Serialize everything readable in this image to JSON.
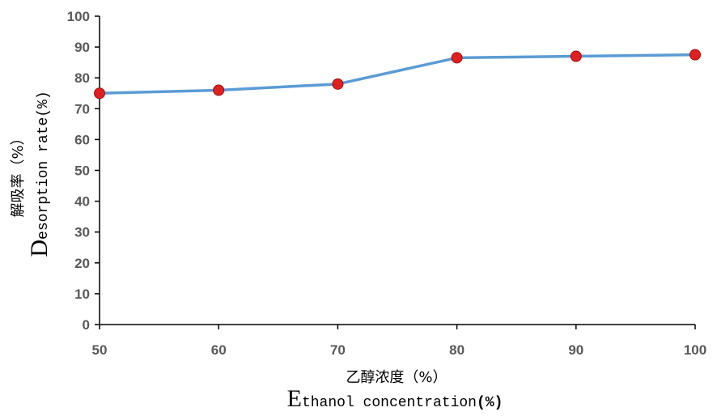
{
  "chart_data": {
    "type": "line",
    "x": [
      50,
      60,
      70,
      80,
      90,
      100
    ],
    "series": [
      {
        "values": [
          75,
          76,
          78,
          86.5,
          87,
          87.5
        ],
        "line_color": "#5b9bd5",
        "marker_color": "#e02020"
      }
    ],
    "xlim": [
      50,
      100
    ],
    "ylim": [
      0,
      100
    ],
    "xticks": [
      "50",
      "60",
      "70",
      "80",
      "90",
      "100"
    ],
    "yticks": [
      "0",
      "10",
      "20",
      "30",
      "40",
      "50",
      "60",
      "70",
      "80",
      "90",
      "100"
    ],
    "xlabel": {
      "cn": "乙醇浓度（%）",
      "en_initial": "E",
      "en_rest": "thanol concentration",
      "unit": "(%)"
    },
    "ylabel": {
      "cn": "解吸率（%）",
      "en_initial": "D",
      "en_rest": "esorption rate(%)"
    },
    "grid": false,
    "legend": "none"
  }
}
